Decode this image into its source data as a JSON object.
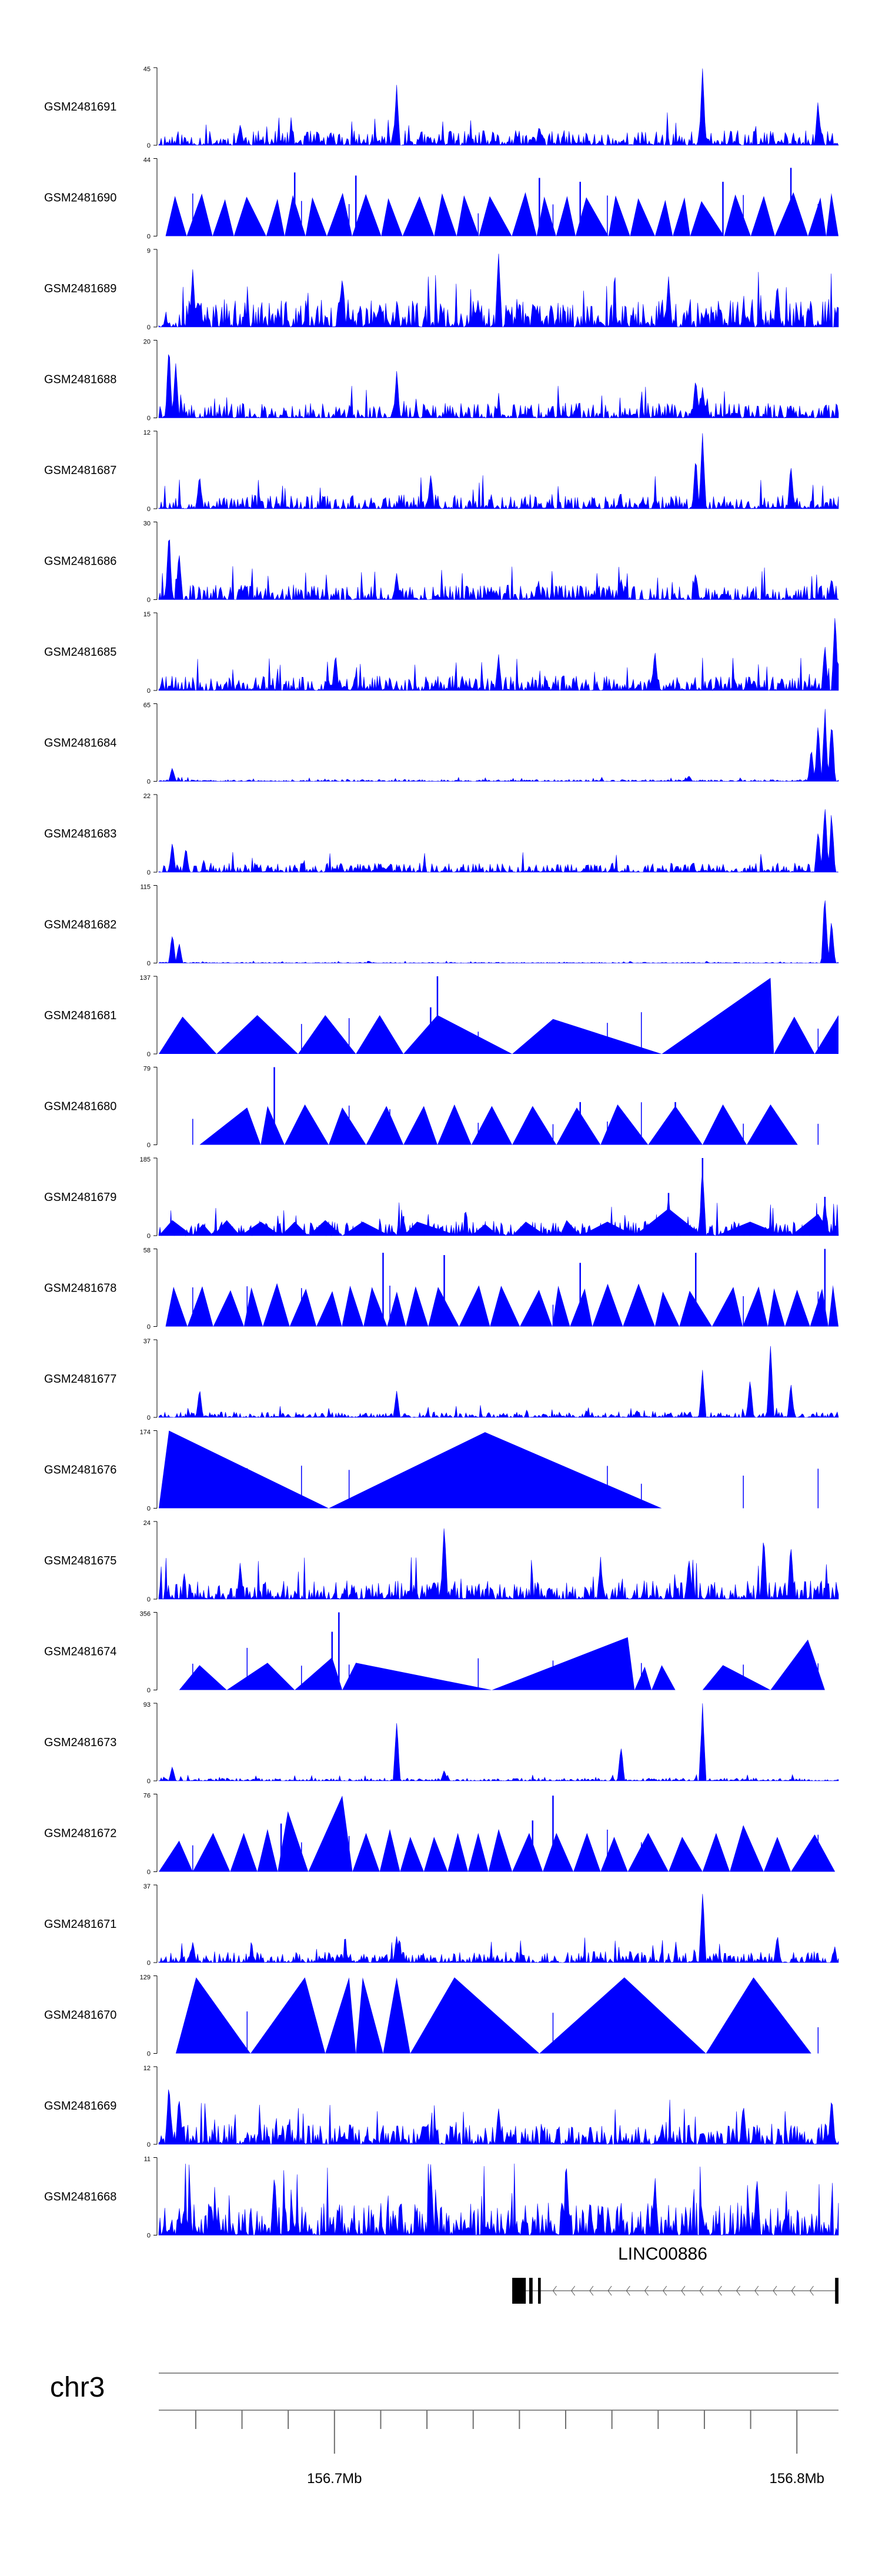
{
  "colors": {
    "signal": "#0000ff",
    "axis": "#000000",
    "line": "#8c8c8c",
    "tick": "#6f6f6f",
    "text": "#000000"
  },
  "chart_data": {
    "type": "area",
    "title": "",
    "tracks": [
      {
        "sample": "GSM2481691",
        "ymax": "45",
        "ymin": "0",
        "style": "dense",
        "seed": 11,
        "peaks": [
          [
            0.35,
            0.78
          ],
          [
            0.8,
            1.0
          ],
          [
            0.97,
            0.62
          ],
          [
            0.12,
            0.3
          ],
          [
            0.56,
            0.28
          ]
        ]
      },
      {
        "sample": "GSM2481690",
        "ymax": "44",
        "ymin": "0",
        "style": "tri",
        "seed": 23,
        "peaks": [
          [
            0.2,
            0.82
          ],
          [
            0.29,
            0.78
          ],
          [
            0.56,
            0.75
          ],
          [
            0.62,
            0.7
          ],
          [
            0.83,
            0.7
          ],
          [
            0.93,
            0.88
          ]
        ]
      },
      {
        "sample": "GSM2481689",
        "ymax": "9",
        "ymin": "0",
        "style": "dense",
        "seed": 37,
        "base": 0.3,
        "peaks": [
          [
            0.05,
            0.8
          ],
          [
            0.5,
            1.0
          ],
          [
            0.27,
            0.72
          ],
          [
            0.75,
            0.72
          ],
          [
            0.91,
            0.66
          ],
          [
            0.999,
            0.35
          ]
        ]
      },
      {
        "sample": "GSM2481688",
        "ymax": "20",
        "ymin": "0",
        "style": "dense",
        "seed": 41,
        "peaks": [
          [
            0.015,
            1.0
          ],
          [
            0.025,
            0.75
          ],
          [
            0.35,
            0.62
          ],
          [
            0.79,
            0.6
          ],
          [
            0.8,
            0.45
          ]
        ]
      },
      {
        "sample": "GSM2481687",
        "ymax": "12",
        "ymin": "0",
        "style": "dense",
        "seed": 53,
        "peaks": [
          [
            0.8,
            1.0
          ],
          [
            0.79,
            0.7
          ],
          [
            0.93,
            0.62
          ],
          [
            0.4,
            0.5
          ],
          [
            0.06,
            0.45
          ]
        ]
      },
      {
        "sample": "GSM2481686",
        "ymax": "30",
        "ymin": "0",
        "style": "dense",
        "seed": 67,
        "peaks": [
          [
            0.015,
            0.98
          ],
          [
            0.03,
            0.7
          ],
          [
            0.35,
            0.35
          ],
          [
            0.79,
            0.4
          ],
          [
            0.68,
            0.3
          ],
          [
            0.99,
            0.3
          ]
        ]
      },
      {
        "sample": "GSM2481685",
        "ymax": "15",
        "ymin": "0",
        "style": "dense",
        "seed": 71,
        "peaks": [
          [
            0.995,
            1.0
          ],
          [
            0.98,
            0.65
          ],
          [
            0.73,
            0.55
          ],
          [
            0.5,
            0.48
          ],
          [
            0.26,
            0.5
          ]
        ]
      },
      {
        "sample": "GSM2481684",
        "ymax": "65",
        "ymin": "0",
        "style": "dense",
        "seed": 83,
        "base": 0.02,
        "peaks": [
          [
            0.98,
            1.0
          ],
          [
            0.99,
            0.9
          ],
          [
            0.97,
            0.8
          ],
          [
            0.96,
            0.45
          ],
          [
            0.02,
            0.2
          ],
          [
            0.78,
            0.08
          ]
        ]
      },
      {
        "sample": "GSM2481683",
        "ymax": "22",
        "ymin": "0",
        "style": "dense",
        "seed": 97,
        "base": 0.1,
        "peaks": [
          [
            0.98,
            1.0
          ],
          [
            0.99,
            0.85
          ],
          [
            0.97,
            0.6
          ],
          [
            0.02,
            0.45
          ],
          [
            0.04,
            0.35
          ]
        ]
      },
      {
        "sample": "GSM2481682",
        "ymax": "115",
        "ymin": "0",
        "style": "dense",
        "seed": 101,
        "base": 0.01,
        "peaks": [
          [
            0.98,
            1.0
          ],
          [
            0.99,
            0.6
          ],
          [
            0.02,
            0.42
          ],
          [
            0.03,
            0.3
          ]
        ]
      },
      {
        "sample": "GSM2481681",
        "ymax": "137",
        "ymin": "0",
        "style": "tri",
        "seed": 109,
        "tris": [
          [
            0.0,
            0.035,
            0.085,
            0.48
          ],
          [
            0.085,
            0.145,
            0.205,
            0.5
          ],
          [
            0.205,
            0.245,
            0.29,
            0.5
          ],
          [
            0.29,
            0.325,
            0.36,
            0.5
          ],
          [
            0.36,
            0.41,
            0.52,
            0.5
          ],
          [
            0.52,
            0.58,
            0.74,
            0.45
          ],
          [
            0.74,
            0.9,
            0.905,
            0.98
          ],
          [
            0.905,
            0.935,
            0.965,
            0.48
          ],
          [
            0.965,
            1.0,
            1.0,
            0.5
          ]
        ],
        "peaks": [
          [
            0.41,
            1.0
          ],
          [
            0.4,
            0.6
          ]
        ]
      },
      {
        "sample": "GSM2481680",
        "ymax": "79",
        "ymin": "0",
        "style": "tri",
        "seed": 113,
        "tris": [
          [
            0.06,
            0.13,
            0.15,
            0.48
          ],
          [
            0.15,
            0.16,
            0.185,
            0.5
          ],
          [
            0.185,
            0.215,
            0.25,
            0.52
          ],
          [
            0.25,
            0.27,
            0.305,
            0.48
          ],
          [
            0.305,
            0.335,
            0.36,
            0.5
          ],
          [
            0.36,
            0.39,
            0.41,
            0.5
          ],
          [
            0.41,
            0.435,
            0.46,
            0.52
          ],
          [
            0.46,
            0.49,
            0.52,
            0.5
          ],
          [
            0.52,
            0.55,
            0.585,
            0.5
          ],
          [
            0.585,
            0.615,
            0.65,
            0.48
          ],
          [
            0.65,
            0.675,
            0.72,
            0.52
          ],
          [
            0.72,
            0.76,
            0.8,
            0.5
          ],
          [
            0.8,
            0.83,
            0.865,
            0.52
          ],
          [
            0.865,
            0.9,
            0.94,
            0.52
          ]
        ],
        "peaks": [
          [
            0.17,
            1.0
          ],
          [
            0.62,
            0.55
          ],
          [
            0.76,
            0.55
          ]
        ]
      },
      {
        "sample": "GSM2481679",
        "ymax": "185",
        "ymin": "0",
        "style": "mixed",
        "seed": 127,
        "tris": [
          [
            0.0,
            0.02,
            0.05,
            0.2
          ],
          [
            0.05,
            0.065,
            0.08,
            0.15
          ],
          [
            0.08,
            0.1,
            0.12,
            0.2
          ],
          [
            0.12,
            0.15,
            0.18,
            0.18
          ],
          [
            0.18,
            0.2,
            0.22,
            0.18
          ],
          [
            0.22,
            0.245,
            0.27,
            0.2
          ],
          [
            0.27,
            0.3,
            0.34,
            0.18
          ],
          [
            0.36,
            0.38,
            0.44,
            0.18
          ],
          [
            0.46,
            0.48,
            0.5,
            0.15
          ],
          [
            0.52,
            0.54,
            0.57,
            0.18
          ],
          [
            0.59,
            0.6,
            0.62,
            0.2
          ],
          [
            0.62,
            0.66,
            0.7,
            0.18
          ],
          [
            0.7,
            0.75,
            0.8,
            0.35
          ],
          [
            0.82,
            0.87,
            0.92,
            0.18
          ],
          [
            0.93,
            0.97,
            0.99,
            0.28
          ]
        ],
        "peaks": [
          [
            0.8,
            1.0
          ],
          [
            0.75,
            0.55
          ],
          [
            0.36,
            0.25
          ],
          [
            0.98,
            0.5
          ]
        ]
      },
      {
        "sample": "GSM2481678",
        "ymax": "58",
        "ymin": "0",
        "style": "tri",
        "seed": 131,
        "peaks": [
          [
            0.33,
            0.95
          ],
          [
            0.42,
            0.92
          ],
          [
            0.62,
            0.82
          ],
          [
            0.79,
            0.95
          ],
          [
            0.98,
            1.0
          ]
        ]
      },
      {
        "sample": "GSM2481677",
        "ymax": "37",
        "ymin": "0",
        "style": "dense",
        "seed": 137,
        "base": 0.06,
        "peaks": [
          [
            0.9,
            1.0
          ],
          [
            0.87,
            0.55
          ],
          [
            0.93,
            0.48
          ],
          [
            0.8,
            0.62
          ],
          [
            0.35,
            0.35
          ],
          [
            0.06,
            0.4
          ]
        ]
      },
      {
        "sample": "GSM2481676",
        "ymax": "174",
        "ymin": "0",
        "style": "tri",
        "seed": 139,
        "tris": [
          [
            0.0,
            0.015,
            0.25,
            1.0
          ],
          [
            0.25,
            0.48,
            0.74,
            0.98
          ]
        ]
      },
      {
        "sample": "GSM2481675",
        "ymax": "24",
        "ymin": "0",
        "style": "dense",
        "seed": 149,
        "base": 0.2,
        "peaks": [
          [
            0.42,
            1.0
          ],
          [
            0.89,
            0.88
          ],
          [
            0.93,
            0.75
          ],
          [
            0.78,
            0.62
          ],
          [
            0.65,
            0.55
          ],
          [
            0.12,
            0.5
          ]
        ]
      },
      {
        "sample": "GSM2481674",
        "ymax": "356",
        "ymin": "0",
        "style": "tri",
        "seed": 151,
        "tris": [
          [
            0.03,
            0.06,
            0.1,
            0.32
          ],
          [
            0.1,
            0.16,
            0.2,
            0.35
          ],
          [
            0.2,
            0.255,
            0.27,
            0.42
          ],
          [
            0.27,
            0.29,
            0.49,
            0.35
          ],
          [
            0.49,
            0.69,
            0.7,
            0.68
          ],
          [
            0.7,
            0.715,
            0.725,
            0.3
          ],
          [
            0.725,
            0.74,
            0.76,
            0.32
          ],
          [
            0.8,
            0.83,
            0.9,
            0.32
          ],
          [
            0.9,
            0.955,
            0.98,
            0.65
          ]
        ],
        "peaks": [
          [
            0.265,
            1.0
          ],
          [
            0.255,
            0.75
          ]
        ]
      },
      {
        "sample": "GSM2481673",
        "ymax": "93",
        "ymin": "0",
        "style": "dense",
        "seed": 157,
        "base": 0.03,
        "peaks": [
          [
            0.8,
            1.0
          ],
          [
            0.35,
            0.85
          ],
          [
            0.68,
            0.52
          ],
          [
            0.02,
            0.2
          ],
          [
            0.42,
            0.15
          ]
        ]
      },
      {
        "sample": "GSM2481672",
        "ymax": "76",
        "ymin": "0",
        "style": "tri",
        "seed": 163,
        "tris": [
          [
            0.0,
            0.03,
            0.05,
            0.4
          ],
          [
            0.05,
            0.08,
            0.105,
            0.5
          ],
          [
            0.105,
            0.125,
            0.145,
            0.5
          ],
          [
            0.145,
            0.16,
            0.175,
            0.55
          ],
          [
            0.175,
            0.19,
            0.22,
            0.78
          ],
          [
            0.22,
            0.27,
            0.285,
            0.98
          ],
          [
            0.285,
            0.305,
            0.325,
            0.5
          ],
          [
            0.325,
            0.34,
            0.355,
            0.55
          ],
          [
            0.355,
            0.37,
            0.39,
            0.45
          ],
          [
            0.39,
            0.405,
            0.425,
            0.45
          ],
          [
            0.425,
            0.44,
            0.455,
            0.5
          ],
          [
            0.455,
            0.47,
            0.485,
            0.5
          ],
          [
            0.485,
            0.5,
            0.52,
            0.55
          ],
          [
            0.52,
            0.545,
            0.565,
            0.5
          ],
          [
            0.565,
            0.585,
            0.61,
            0.5
          ],
          [
            0.61,
            0.63,
            0.65,
            0.5
          ],
          [
            0.65,
            0.67,
            0.69,
            0.45
          ],
          [
            0.69,
            0.72,
            0.75,
            0.5
          ],
          [
            0.75,
            0.77,
            0.8,
            0.45
          ],
          [
            0.8,
            0.82,
            0.84,
            0.5
          ],
          [
            0.84,
            0.86,
            0.89,
            0.6
          ],
          [
            0.89,
            0.91,
            0.93,
            0.45
          ],
          [
            0.93,
            0.965,
            0.995,
            0.48
          ]
        ],
        "peaks": [
          [
            0.58,
            0.98
          ],
          [
            0.18,
            0.62
          ],
          [
            0.55,
            0.66
          ],
          [
            0.86,
            0.58
          ]
        ]
      },
      {
        "sample": "GSM2481671",
        "ymax": "37",
        "ymin": "0",
        "style": "dense",
        "seed": 167,
        "base": 0.12,
        "peaks": [
          [
            0.8,
            1.0
          ],
          [
            0.91,
            0.38
          ],
          [
            0.35,
            0.35
          ],
          [
            0.05,
            0.3
          ]
        ]
      },
      {
        "sample": "GSM2481670",
        "ymax": "129",
        "ymin": "0",
        "style": "tri",
        "seed": 173,
        "tris": [
          [
            0.025,
            0.055,
            0.135,
            0.98
          ],
          [
            0.135,
            0.215,
            0.245,
            0.98
          ],
          [
            0.245,
            0.28,
            0.29,
            0.98
          ],
          [
            0.29,
            0.3,
            0.33,
            0.98
          ],
          [
            0.33,
            0.35,
            0.37,
            0.98
          ],
          [
            0.37,
            0.435,
            0.56,
            0.98
          ],
          [
            0.56,
            0.685,
            0.805,
            0.98
          ],
          [
            0.805,
            0.875,
            0.96,
            0.98
          ]
        ],
        "peaks": [
          [
            0.435,
            0.95
          ]
        ]
      },
      {
        "sample": "GSM2481669",
        "ymax": "12",
        "ymin": "0",
        "style": "dense",
        "seed": 179,
        "base": 0.22,
        "peaks": [
          [
            0.015,
            0.92
          ],
          [
            0.03,
            0.7
          ],
          [
            0.99,
            0.72
          ],
          [
            0.86,
            0.6
          ],
          [
            0.5,
            0.5
          ]
        ]
      },
      {
        "sample": "GSM2481668",
        "ymax": "11",
        "ymin": "0",
        "style": "dense",
        "seed": 181,
        "base": 0.35,
        "peaks": [
          [
            0.4,
            1.0
          ],
          [
            0.17,
            0.9
          ],
          [
            0.6,
            0.88
          ],
          [
            0.88,
            0.85
          ],
          [
            0.73,
            0.8
          ]
        ]
      }
    ],
    "gene": {
      "name": "LINC00886",
      "start": 0.52,
      "end": 1.0,
      "strand": "-",
      "exons": [
        [
          0.52,
          0.54
        ],
        [
          0.545,
          0.55
        ],
        [
          0.558,
          0.562
        ],
        [
          0.995,
          1.0
        ]
      ]
    },
    "genome_axis": {
      "chromosome": "chr3",
      "xlim": [
        156.662,
        156.809
      ],
      "major_ticks": [
        156.7,
        156.8
      ],
      "minor_ticks": [
        156.67,
        156.68,
        156.69,
        156.71,
        156.72,
        156.73,
        156.74,
        156.75,
        156.76,
        156.77,
        156.78,
        156.79
      ],
      "tick_labels": [
        "156.7Mb",
        "156.8Mb"
      ],
      "unit": "Mb"
    }
  }
}
